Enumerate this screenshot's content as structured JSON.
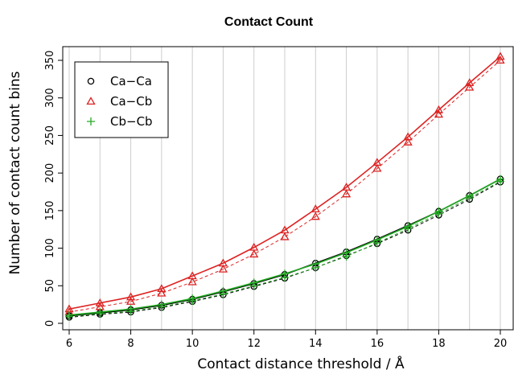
{
  "chart_data": {
    "type": "line",
    "title": "Contact Count",
    "xlabel": "Contact distance threshold / Å",
    "ylabel": "Number of contact count bins",
    "xlim": [
      6,
      20
    ],
    "ylim": [
      0,
      350
    ],
    "xticks": [
      6,
      8,
      10,
      12,
      14,
      16,
      18,
      20
    ],
    "yticks": [
      0,
      50,
      100,
      150,
      200,
      250,
      300,
      350
    ],
    "grid": "vertical lines at each integer x",
    "legend_position": "top-left",
    "x": [
      6,
      7,
      8,
      9,
      10,
      11,
      12,
      13,
      14,
      15,
      16,
      17,
      18,
      19,
      20
    ],
    "series": [
      {
        "name": "Ca−Ca",
        "marker": "circle",
        "color": "#000000",
        "values": [
          10,
          14,
          18,
          24,
          32,
          42,
          53,
          65,
          80,
          95,
          112,
          130,
          149,
          170,
          192
        ],
        "values_dashed": [
          8,
          12,
          15,
          21,
          29,
          38,
          49,
          60,
          74,
          90,
          106,
          124,
          144,
          165,
          188
        ]
      },
      {
        "name": "Ca−Cb",
        "marker": "triangle",
        "color": "#dd2222",
        "values": [
          19,
          27,
          35,
          46,
          63,
          80,
          101,
          124,
          152,
          181,
          214,
          248,
          284,
          320,
          355
        ],
        "values_dashed": [
          15,
          22,
          29,
          40,
          55,
          72,
          92,
          115,
          142,
          172,
          206,
          241,
          278,
          314,
          350
        ]
      },
      {
        "name": "Cb−Cb",
        "marker": "plus",
        "color": "#22aa22",
        "values": [
          11,
          15,
          19,
          25,
          33,
          43,
          54,
          66,
          79,
          94,
          111,
          129,
          149,
          170,
          192
        ],
        "values_dashed": [
          9,
          13,
          16,
          22,
          30,
          39,
          50,
          61,
          74,
          89,
          107,
          126,
          146,
          167,
          189
        ]
      }
    ]
  }
}
